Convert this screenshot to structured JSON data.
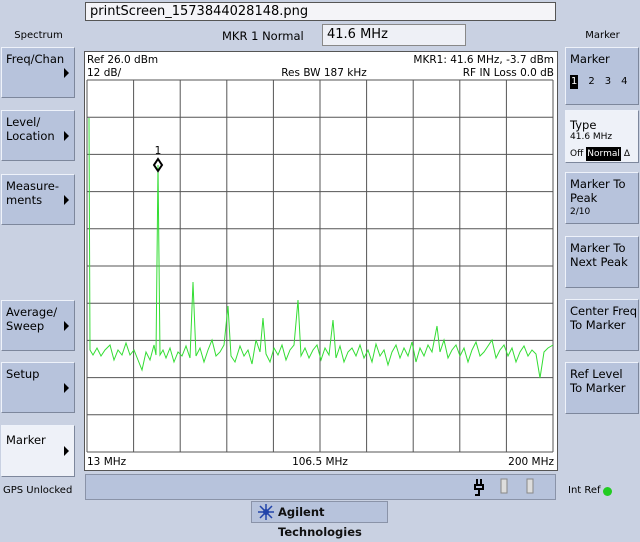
{
  "window": {
    "title": "printScreen_1573844028148.png"
  },
  "left_panel": {
    "title": "Spectrum",
    "buttons": [
      {
        "lines": [
          "Freq/Chan"
        ]
      },
      {
        "lines": [
          "Level/",
          "Location"
        ]
      },
      {
        "lines": [
          "Measure-",
          "ments"
        ]
      },
      {
        "lines": [
          "Average/",
          "Sweep"
        ]
      },
      {
        "lines": [
          "Setup"
        ]
      },
      {
        "lines": [
          "Marker"
        ]
      }
    ],
    "status": "GPS Unlocked"
  },
  "marker_entry": {
    "label": "MKR 1 Normal",
    "value": "41.6 MHz"
  },
  "display": {
    "ref": "Ref 26.0 dBm",
    "marker": "MKR1: 41.6 MHz, -3.7 dBm",
    "scale": "12 dB/",
    "rbw": "Res BW 187 kHz",
    "loss": "RF IN Loss 0.0 dB",
    "marker_number": "1",
    "start": "13 MHz",
    "center": "106.5 MHz",
    "stop": "200 MHz"
  },
  "right_panel": {
    "title": "Marker",
    "marker_button": {
      "label": "Marker",
      "numbers": [
        "1",
        "2",
        "3",
        "4"
      ]
    },
    "type_box": {
      "label": "Type",
      "value": "41.6 MHz",
      "options": [
        "Off",
        "Normal",
        "Δ"
      ]
    },
    "buttons": [
      {
        "lines": [
          "Marker To",
          "Peak"
        ],
        "sub": "2/10"
      },
      {
        "lines": [
          "Marker To",
          "Next Peak"
        ]
      },
      {
        "lines": [
          "Center Freq",
          "To Marker"
        ]
      },
      {
        "lines": [
          "Ref Level",
          "To Marker"
        ]
      }
    ]
  },
  "footer": {
    "int_ref": "Int Ref",
    "brand": "Agilent Technologies"
  }
}
